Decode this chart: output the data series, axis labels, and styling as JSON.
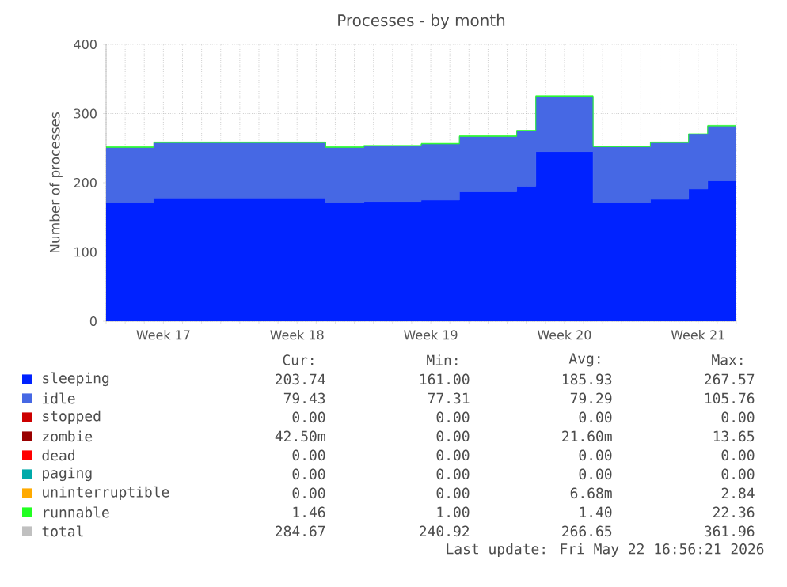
{
  "chart_data": {
    "type": "area",
    "stacked": true,
    "title": "Processes - by month",
    "ylabel": "Number of processes",
    "categories": [
      null,
      null,
      null,
      "Week 17",
      null,
      null,
      null,
      null,
      null,
      null,
      "Week 18",
      null,
      null,
      null,
      null,
      null,
      null,
      "Week 19",
      null,
      null,
      null,
      null,
      null,
      null,
      "Week 20",
      null,
      null,
      null,
      null,
      null,
      null,
      "Week 21",
      null,
      null
    ],
    "ylim": [
      0,
      400
    ],
    "yticks": [
      0,
      100,
      200,
      300,
      400
    ],
    "grid": true,
    "legend": "bottom",
    "series": [
      {
        "name": "sleeping",
        "color": "#0022ff",
        "values": [
          171,
          171,
          171,
          178,
          178,
          178,
          178,
          178,
          178,
          178,
          178,
          178,
          171,
          171,
          173,
          173,
          173,
          175,
          175,
          187,
          187,
          187,
          195,
          245,
          245,
          245,
          171,
          171,
          171,
          176,
          176,
          191,
          203,
          203
        ]
      },
      {
        "name": "idle",
        "color": "#4668e4",
        "values": [
          80,
          80,
          80,
          80,
          80,
          80,
          80,
          80,
          80,
          80,
          80,
          80,
          80,
          80,
          80,
          80,
          80,
          81,
          81,
          80,
          80,
          80,
          80,
          80,
          80,
          80,
          81,
          81,
          81,
          82,
          82,
          79,
          79,
          79
        ]
      },
      {
        "name": "stopped",
        "color": "#cc0000",
        "values": [
          null,
          null,
          null,
          null,
          null,
          null,
          null,
          null,
          null,
          null,
          null,
          null,
          null,
          null,
          null,
          null,
          null,
          null,
          null,
          null,
          null,
          null,
          null,
          null,
          null,
          null,
          null,
          null,
          null,
          null,
          null,
          null,
          null,
          null
        ]
      },
      {
        "name": "zombie",
        "color": "#990000",
        "values": [
          null,
          null,
          null,
          null,
          null,
          null,
          null,
          null,
          null,
          null,
          null,
          null,
          null,
          null,
          null,
          null,
          null,
          null,
          null,
          null,
          null,
          null,
          null,
          null,
          null,
          null,
          null,
          null,
          null,
          null,
          null,
          null,
          null,
          null
        ]
      },
      {
        "name": "dead",
        "color": "#ff0000",
        "values": [
          null,
          null,
          null,
          null,
          null,
          null,
          null,
          null,
          null,
          null,
          null,
          null,
          null,
          null,
          null,
          null,
          null,
          null,
          null,
          null,
          null,
          null,
          null,
          null,
          null,
          null,
          null,
          null,
          null,
          null,
          null,
          null,
          null,
          null
        ]
      },
      {
        "name": "paging",
        "color": "#00aaaa",
        "values": [
          null,
          null,
          null,
          null,
          null,
          null,
          null,
          null,
          null,
          null,
          null,
          null,
          null,
          null,
          null,
          null,
          null,
          null,
          null,
          null,
          null,
          null,
          null,
          null,
          null,
          null,
          null,
          null,
          null,
          null,
          null,
          null,
          null,
          null
        ]
      },
      {
        "name": "uninterruptible",
        "color": "#ffaa00",
        "values": [
          null,
          null,
          null,
          null,
          null,
          null,
          null,
          null,
          null,
          null,
          null,
          null,
          null,
          null,
          null,
          null,
          null,
          null,
          null,
          null,
          null,
          null,
          null,
          null,
          null,
          null,
          null,
          null,
          null,
          null,
          null,
          null,
          null,
          null
        ]
      },
      {
        "name": "runnable",
        "color": "#22ff22",
        "values": [
          1,
          1,
          1,
          1,
          1,
          1,
          1,
          1,
          1,
          1,
          1,
          1,
          1,
          1,
          1,
          1,
          1,
          1,
          1,
          1,
          1,
          1,
          1,
          1,
          1,
          1,
          1,
          1,
          1,
          1,
          1,
          1,
          1,
          1
        ]
      },
      {
        "name": "total",
        "color": "#c0c0c0",
        "type": "line",
        "values": [
          null,
          null,
          null,
          null,
          null,
          null,
          null,
          null,
          null,
          null,
          null,
          null,
          null,
          null,
          null,
          null,
          null,
          null,
          null,
          null,
          null,
          null,
          null,
          null,
          null,
          null,
          null,
          null,
          null,
          null,
          null,
          null,
          null,
          null
        ]
      }
    ],
    "annotations": [
      "Cur:",
      "Min:",
      "Avg:",
      "Max:",
      "203.74",
      "161.00",
      "185.93",
      "267.57",
      "79.43",
      "77.31",
      "79.29",
      "105.76",
      "0.00",
      "0.00",
      "0.00",
      "0.00",
      "42.50m",
      "0.00",
      "21.60m",
      "13.65",
      "0.00",
      "0.00",
      "0.00",
      "0.00",
      "0.00",
      "0.00",
      "0.00",
      "0.00",
      "0.00",
      "0.00",
      "6.68m",
      "2.84",
      "1.46",
      "1.00",
      "1.40",
      "22.36",
      "284.67",
      "240.92",
      "266.65",
      "361.96",
      "Last update: Fri May 22 16:56:21 2026"
    ]
  }
}
